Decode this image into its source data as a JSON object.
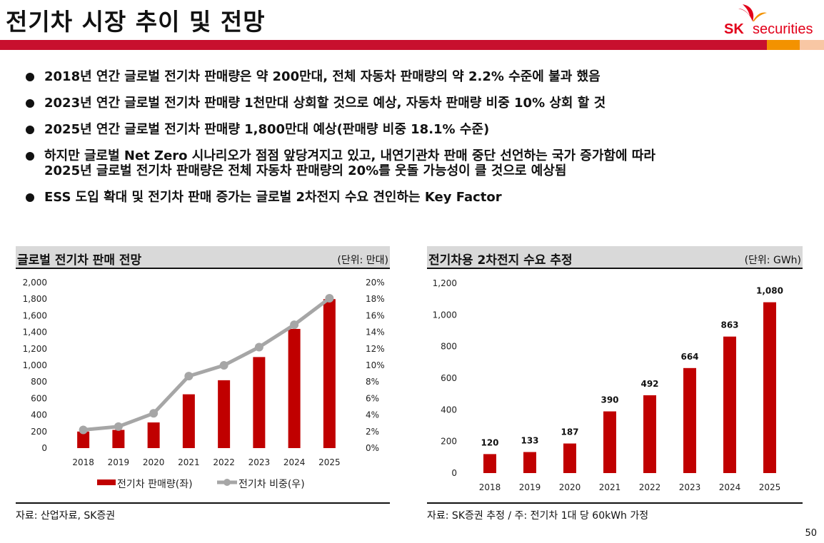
{
  "header": {
    "title": "전기차 시장 추이 및 전망",
    "logo_text_sk": "SK",
    "logo_text_securities": "securities"
  },
  "bullets": [
    {
      "lines": [
        "2018년 연간 글로벌 전기차 판매량은 약 200만대, 전체 자동차 판매량의 약 2.2% 수준에 불과 했음"
      ]
    },
    {
      "lines": [
        "2023년 연간 글로벌 전기차 판매량 1천만대 상회할 것으로 예상, 자동차 판매량 비중 10% 상회 할 것"
      ]
    },
    {
      "lines": [
        "2025년 연간 글로벌 전기차 판매량 1,800만대 예상(판매량 비중 18.1% 수준)"
      ]
    },
    {
      "lines": [
        "하지만 글로벌 Net Zero 시나리오가 점점 앞당겨지고 있고, 내연기관차 판매 중단 선언하는 국가 증가함에 따라",
        "2025년 글로벌 전기차 판매량은 전체 자동차 판매량의 20%를 웃돌 가능성이 클 것으로 예상됨"
      ]
    },
    {
      "lines": [
        "ESS 도입 확대 및 전기차 판매 증가는 글로벌 2차전지 수요 견인하는 Key Factor"
      ]
    }
  ],
  "left_panel": {
    "title": "글로벌 전기차 판매 전망",
    "unit": "(단위: 만대)",
    "source": "자료: 산업자료, SK증권"
  },
  "right_panel": {
    "title": "전기차용 2차전지 수요 추정",
    "unit": "(단위: GWh)",
    "source": "자료: SK증권 추정 / 주: 전기차 1대 당 60kWh 가정"
  },
  "page_number": "50",
  "colors": {
    "bar_red": "#c00000",
    "line_gray": "#a6a6a6",
    "band_red": "#c8102e",
    "band_orange": "#f39200",
    "band_peach": "#f8c7a4",
    "logo_red": "#e2001a",
    "logo_orange": "#f39200"
  },
  "chart_data": [
    {
      "type": "bar",
      "categories": [
        "2018",
        "2019",
        "2020",
        "2021",
        "2022",
        "2023",
        "2024",
        "2025"
      ],
      "series": [
        {
          "name": "전기차 판매량(좌)",
          "type": "bar",
          "axis": "left",
          "values": [
            200,
            220,
            310,
            650,
            820,
            1100,
            1440,
            1800
          ]
        },
        {
          "name": "전기차 비중(우)",
          "type": "line",
          "axis": "right",
          "values": [
            2.2,
            2.6,
            4.2,
            8.7,
            10.0,
            12.2,
            14.9,
            18.1
          ]
        }
      ],
      "ylim": [
        0,
        2000
      ],
      "yticks": [
        "0",
        "200",
        "400",
        "600",
        "800",
        "1,000",
        "1,200",
        "1,400",
        "1,600",
        "1,800",
        "2,000"
      ],
      "y2lim": [
        0,
        20
      ],
      "y2ticks": [
        "0%",
        "2%",
        "4%",
        "6%",
        "8%",
        "10%",
        "12%",
        "14%",
        "16%",
        "18%",
        "20%"
      ],
      "legend": "bottom",
      "grid": false
    },
    {
      "type": "bar",
      "categories": [
        "2018",
        "2019",
        "2020",
        "2021",
        "2022",
        "2023",
        "2024",
        "2025"
      ],
      "values": [
        120,
        133,
        187,
        390,
        492,
        664,
        863,
        1080
      ],
      "data_labels": [
        "120",
        "133",
        "187",
        "390",
        "492",
        "664",
        "863",
        "1,080"
      ],
      "ylim": [
        0,
        1200
      ],
      "yticks": [
        "0",
        "200",
        "400",
        "600",
        "800",
        "1,000",
        "1,200"
      ],
      "legend": "none",
      "grid": false
    }
  ]
}
